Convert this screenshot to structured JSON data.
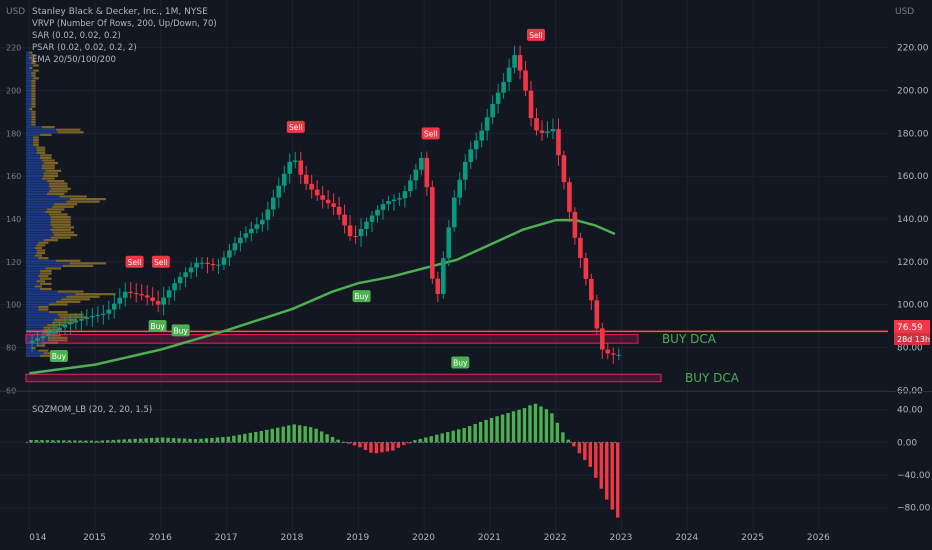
{
  "chart_data": [
    {
      "type": "candlestick",
      "title": "Stanley Black & Decker, Inc., 1M, NYSE",
      "currency": "USD",
      "indicators": [
        "VRVP (Number Of Rows, 200, Up/Down, 70)",
        "SAR (0.02, 0.02, 0.2)",
        "PSAR (0.02, 0.02, 0.2, 2)",
        "EMA 20/50/100/200"
      ],
      "ylim": [
        62,
        232
      ],
      "y_ticks": [
        60,
        80,
        100,
        120,
        140,
        160,
        180,
        200,
        220
      ],
      "x_ticks": [
        "014",
        "2015",
        "2016",
        "2017",
        "2018",
        "2019",
        "2020",
        "2021",
        "2022",
        "2023",
        "2024",
        "2025",
        "2026"
      ],
      "x_tick_years": [
        2014,
        2015,
        2016,
        2017,
        2018,
        2019,
        2020,
        2021,
        2022,
        2023,
        2024,
        2025,
        2026
      ],
      "x_range_years": [
        2013.95,
        2027.05
      ],
      "last_price": "76.59",
      "countdown": "28d 13h",
      "price_path": [
        [
          2014.0,
          82
        ],
        [
          2014.3,
          86
        ],
        [
          2014.6,
          91
        ],
        [
          2014.9,
          94
        ],
        [
          2015.2,
          96
        ],
        [
          2015.5,
          106
        ],
        [
          2015.8,
          104
        ],
        [
          2016.0,
          100
        ],
        [
          2016.3,
          112
        ],
        [
          2016.6,
          120
        ],
        [
          2016.9,
          118
        ],
        [
          2017.2,
          130
        ],
        [
          2017.6,
          140
        ],
        [
          2017.9,
          160
        ],
        [
          2018.05,
          170
        ],
        [
          2018.2,
          158
        ],
        [
          2018.45,
          150
        ],
        [
          2018.7,
          145
        ],
        [
          2018.95,
          130
        ],
        [
          2019.2,
          140
        ],
        [
          2019.45,
          148
        ],
        [
          2019.7,
          150
        ],
        [
          2019.95,
          165
        ],
        [
          2020.05,
          172
        ],
        [
          2020.2,
          95
        ],
        [
          2020.35,
          125
        ],
        [
          2020.5,
          150
        ],
        [
          2020.7,
          170
        ],
        [
          2020.9,
          180
        ],
        [
          2021.1,
          195
        ],
        [
          2021.3,
          207
        ],
        [
          2021.4,
          218
        ],
        [
          2021.55,
          205
        ],
        [
          2021.7,
          182
        ],
        [
          2021.85,
          180
        ],
        [
          2022.0,
          182
        ],
        [
          2022.15,
          160
        ],
        [
          2022.3,
          135
        ],
        [
          2022.45,
          118
        ],
        [
          2022.6,
          100
        ],
        [
          2022.72,
          80
        ],
        [
          2022.8,
          77.5
        ],
        [
          2022.9,
          76.59
        ]
      ],
      "ema_200": [
        [
          2014.0,
          68
        ],
        [
          2015.0,
          72
        ],
        [
          2016.0,
          79
        ],
        [
          2017.0,
          88
        ],
        [
          2018.0,
          98
        ],
        [
          2018.6,
          106
        ],
        [
          2019.0,
          110
        ],
        [
          2019.5,
          113
        ],
        [
          2020.0,
          117
        ],
        [
          2020.5,
          121
        ],
        [
          2021.0,
          128
        ],
        [
          2021.5,
          135
        ],
        [
          2022.0,
          139.5
        ],
        [
          2022.3,
          139.5
        ],
        [
          2022.6,
          137
        ],
        [
          2022.9,
          133
        ]
      ],
      "horizontal_line": 87.5,
      "zones": [
        {
          "from_year": 2013.95,
          "to_year": 2023.25,
          "low": 82,
          "high": 86,
          "label": "BUY DCA"
        },
        {
          "from_year": 2013.95,
          "to_year": 2023.6,
          "low": 64,
          "high": 67.5,
          "label": "BUY DCA"
        }
      ],
      "signals": [
        {
          "label": "Sell",
          "x": 2015.6,
          "y": 120
        },
        {
          "label": "Sell",
          "x": 2016.0,
          "y": 120
        },
        {
          "label": "Sell",
          "x": 2018.05,
          "y": 183
        },
        {
          "label": "Sell",
          "x": 2020.1,
          "y": 180
        },
        {
          "label": "Sell",
          "x": 2021.7,
          "y": 226
        },
        {
          "label": "Buy",
          "x": 2014.45,
          "y": 76
        },
        {
          "label": "Buy",
          "x": 2015.95,
          "y": 90
        },
        {
          "label": "Buy",
          "x": 2016.3,
          "y": 88
        },
        {
          "label": "Buy",
          "x": 2019.05,
          "y": 104
        },
        {
          "label": "Buy",
          "x": 2020.55,
          "y": 73
        }
      ]
    },
    {
      "type": "histogram",
      "title": "SQZMOM_LB (20, 2, 20, 1.5)",
      "ylim": [
        -95,
        58
      ],
      "y_ticks": [
        40,
        0,
        -40,
        -80
      ],
      "y_tick_labels": [
        "40.00",
        "0.00",
        "−40.00",
        "−80.00"
      ],
      "values": [
        [
          2014.0,
          3
        ],
        [
          2015.0,
          2
        ],
        [
          2016.0,
          6
        ],
        [
          2016.5,
          4
        ],
        [
          2017.0,
          7
        ],
        [
          2017.5,
          14
        ],
        [
          2018.0,
          22
        ],
        [
          2018.3,
          18
        ],
        [
          2018.7,
          2
        ],
        [
          2019.0,
          -6
        ],
        [
          2019.2,
          -14
        ],
        [
          2019.5,
          -10
        ],
        [
          2019.8,
          2
        ],
        [
          2020.2,
          10
        ],
        [
          2020.6,
          18
        ],
        [
          2021.0,
          30
        ],
        [
          2021.5,
          42
        ],
        [
          2021.65,
          48
        ],
        [
          2021.9,
          38
        ],
        [
          2022.1,
          10
        ],
        [
          2022.25,
          -5
        ],
        [
          2022.5,
          -30
        ],
        [
          2022.75,
          -70
        ],
        [
          2022.9,
          -92
        ]
      ]
    }
  ]
}
